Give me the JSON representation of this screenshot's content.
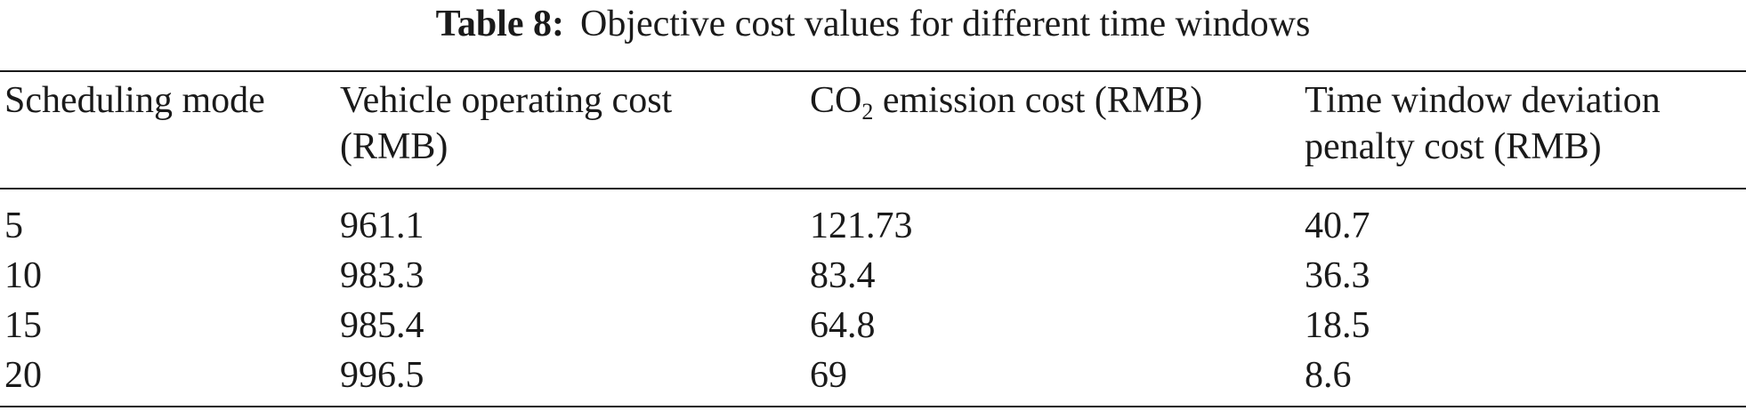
{
  "caption": {
    "label": "Table 8:",
    "text": "Objective cost values for different time windows"
  },
  "table": {
    "headers": {
      "col1": "Scheduling mode",
      "col2_line1": "Vehicle operating cost",
      "col2_line2": "(RMB)",
      "col3_prefix": "CO",
      "col3_sub": "2",
      "col3_suffix": " emission cost (RMB)",
      "col4_line1": "Time window deviation",
      "col4_line2": "penalty cost (RMB)"
    },
    "rows": [
      [
        "5",
        "961.1",
        "121.73",
        "40.7"
      ],
      [
        "10",
        "983.3",
        "83.4",
        "36.3"
      ],
      [
        "15",
        "985.4",
        "64.8",
        "18.5"
      ],
      [
        "20",
        "996.5",
        "69",
        "8.6"
      ]
    ]
  }
}
